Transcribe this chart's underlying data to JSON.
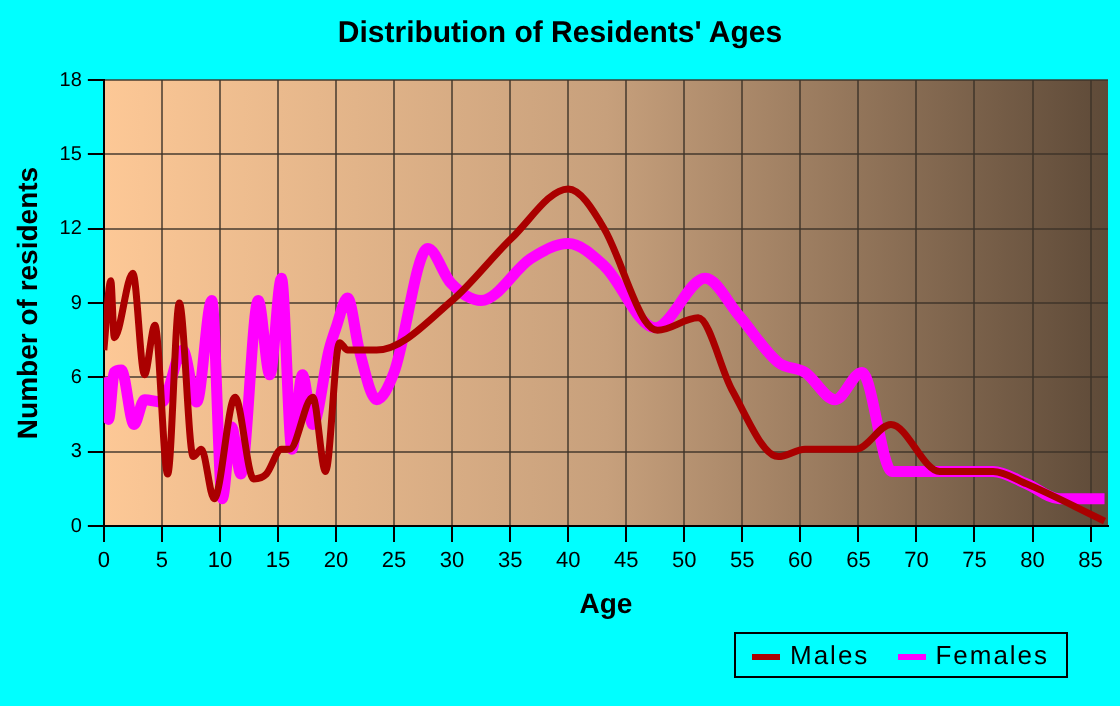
{
  "chart_data": {
    "type": "line",
    "title": "Distribution of Residents' Ages",
    "xlabel": "Age",
    "ylabel": "Number of residents",
    "xlim": [
      0,
      86.5
    ],
    "xticks": [
      0,
      5,
      10,
      15,
      20,
      25,
      30,
      35,
      40,
      45,
      50,
      55,
      60,
      65,
      70,
      75,
      80,
      85
    ],
    "ylim": [
      0,
      18
    ],
    "yticks": [
      0,
      3,
      6,
      9,
      12,
      15,
      18
    ],
    "grid": true,
    "legend": "bottom right",
    "marker": "none",
    "line_style": "solid",
    "series": [
      {
        "name": "Males",
        "color": "#aa0000",
        "x": [
          0,
          0.6,
          0.9,
          2.5,
          3.5,
          4.4,
          5.5,
          6.5,
          7.7,
          8.4,
          9.5,
          11.3,
          12.9,
          14,
          15.3,
          16,
          18,
          19.1,
          20.3,
          21,
          23.5,
          30,
          35.1,
          40,
          43.1,
          46.6,
          47.7,
          51.2,
          54.1,
          58.1,
          60.4,
          64.8,
          67.8,
          72,
          76.6,
          79.5,
          86.2
        ],
        "values": [
          7.1,
          9.9,
          7.6,
          10.2,
          6.1,
          8.1,
          2.1,
          9,
          2.8,
          3.1,
          1.1,
          5.2,
          1.9,
          2.1,
          3.1,
          3.1,
          5.2,
          2.2,
          7.4,
          7.1,
          7.1,
          9.1,
          11.6,
          13.6,
          12,
          8.3,
          7.9,
          8.4,
          5.5,
          2.8,
          3.1,
          3.1,
          4.1,
          2.2,
          2.2,
          1.7,
          0.2
        ]
      },
      {
        "name": "Females",
        "color": "#ff00ff",
        "x": [
          0,
          0.4,
          0.9,
          1.5,
          2.6,
          3.5,
          5,
          6.8,
          8,
          9.3,
          10.2,
          11,
          11.8,
          13.3,
          14.3,
          15.3,
          16.2,
          17.1,
          18,
          19.4,
          20,
          21,
          22,
          23.5,
          25,
          27.9,
          29.9,
          32.5,
          36.8,
          40,
          43.1,
          47.5,
          51.8,
          54.7,
          58.1,
          60.4,
          63,
          65.3,
          67.9,
          72,
          76.6,
          79.5,
          82.3,
          86.2
        ],
        "values": [
          6,
          4.3,
          6.2,
          6.3,
          4.1,
          5.1,
          5,
          7.1,
          5,
          9.1,
          1.1,
          4,
          2.1,
          9.1,
          6.1,
          10,
          3.1,
          6.1,
          4.1,
          7.1,
          8,
          9.2,
          7.1,
          5.1,
          6.2,
          11.2,
          9.8,
          9.1,
          10.8,
          11.4,
          10.5,
          8,
          10,
          8.5,
          6.6,
          6.2,
          5.1,
          6.2,
          2.2,
          2.2,
          2.2,
          1.7,
          1.1,
          1.1
        ]
      }
    ]
  }
}
